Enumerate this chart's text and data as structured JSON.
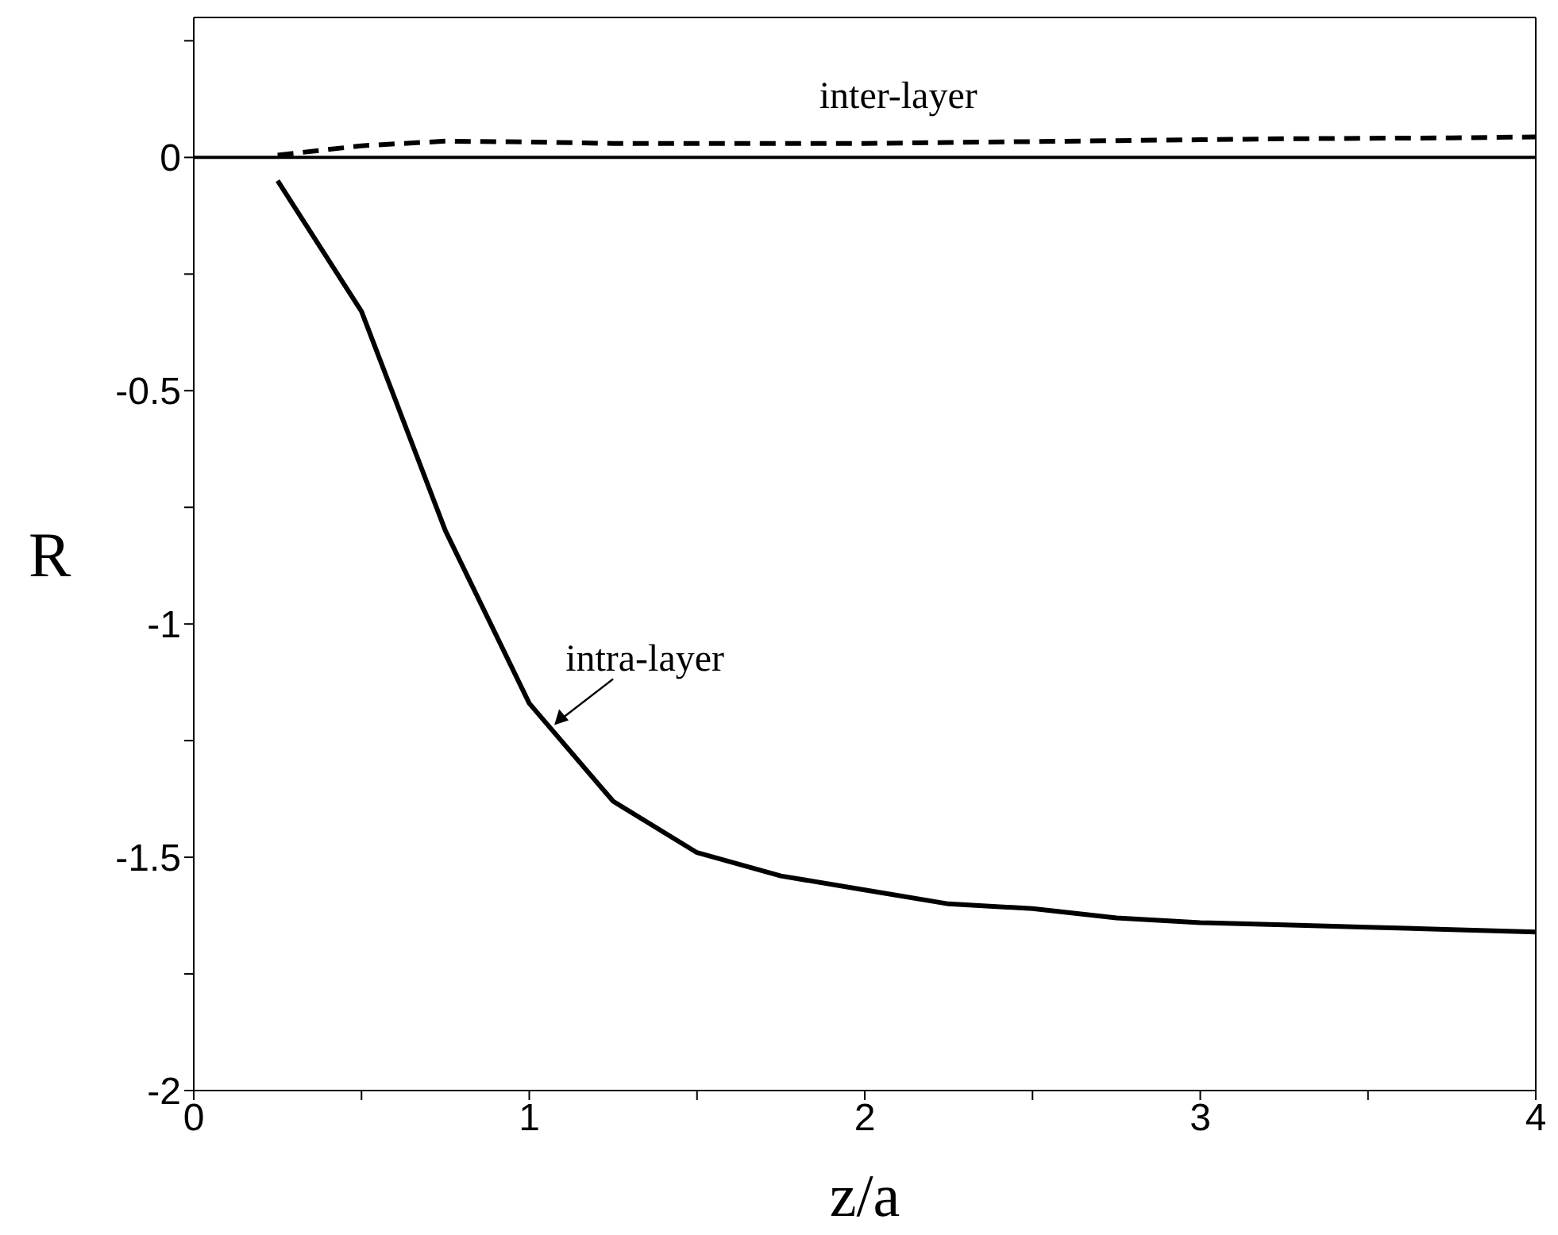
{
  "chart_data": {
    "type": "line",
    "xlabel": "z/a",
    "ylabel": "R",
    "x": [
      0.25,
      0.5,
      0.75,
      1,
      1.25,
      1.5,
      1.75,
      2,
      2.25,
      2.5,
      2.75,
      3,
      3.25,
      3.5,
      3.75,
      4
    ],
    "series": [
      {
        "color": "#000000",
        "line_style": "solid",
        "values": [
          -0.05,
          -0.33,
          -0.8,
          -1.17,
          -1.38,
          -1.49,
          -1.54,
          -1.57,
          -1.6,
          -1.61,
          -1.63,
          -1.64,
          -1.645,
          -1.65,
          -1.655,
          -1.66
        ]
      },
      {
        "color": "#000000",
        "line_style": "dashed",
        "values": [
          0.005,
          0.025,
          0.035,
          0.033,
          0.03,
          0.03,
          0.03,
          0.03,
          0.032,
          0.034,
          0.036,
          0.038,
          0.04,
          0.041,
          0.042,
          0.044
        ]
      }
    ],
    "xlim": [
      0,
      4
    ],
    "xticks": [
      0,
      {
        "value": 0.5,
        "label": null
      },
      1,
      {
        "value": 1.5,
        "label": null
      },
      2,
      {
        "value": 2.5,
        "label": null
      },
      3,
      {
        "value": 3.5,
        "label": null
      },
      4
    ],
    "ylim": [
      -2,
      0.3
    ],
    "yticks": [
      -2,
      {
        "value": -1.75,
        "label": null
      },
      -1.5,
      {
        "value": -1.25,
        "label": null
      },
      -1,
      {
        "value": -0.75,
        "label": null
      },
      -0.5,
      {
        "value": -0.25,
        "label": null
      },
      0,
      {
        "value": 0.25,
        "label": null
      }
    ],
    "ref_lines": [
      {
        "axis": "y",
        "value": 0,
        "color": "#000000",
        "line_style": "solid"
      }
    ],
    "annotations": [
      {
        "text": "inter-layer",
        "x": 2.1,
        "y": 0.031
      },
      {
        "text": "intra-layer",
        "x": 1.07,
        "y": -1.22
      }
    ],
    "grid": false,
    "legend": false,
    "marker": "none"
  }
}
